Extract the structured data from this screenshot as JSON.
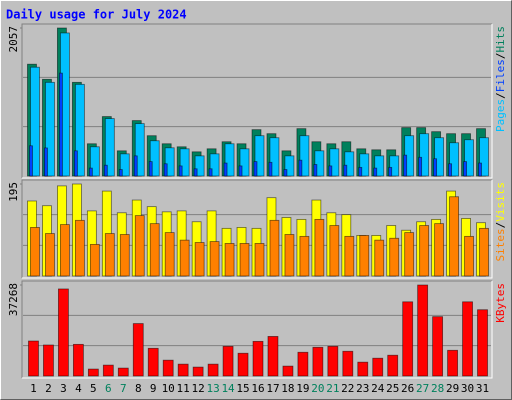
{
  "chart_data": [
    {
      "type": "bar",
      "title": "Daily usage for July 2024",
      "title_color": "#0000ff",
      "ylim": [
        0,
        2057
      ],
      "yticks": [
        2057
      ],
      "label_separator": "/",
      "series": [
        {
          "name": "Hits",
          "color": "#00805c",
          "values": [
            1554,
            1344,
            2057,
            1302,
            448,
            826,
            350,
            770,
            560,
            448,
            406,
            336,
            378,
            476,
            448,
            644,
            588,
            350,
            658,
            476,
            448,
            476,
            378,
            364,
            364,
            672,
            672,
            616,
            588,
            588,
            658
          ]
        },
        {
          "name": "Files",
          "color": "#0040ff",
          "values": [
            420,
            390,
            1430,
            350,
            110,
            150,
            90,
            280,
            200,
            170,
            140,
            100,
            100,
            180,
            140,
            200,
            190,
            90,
            220,
            160,
            140,
            150,
            120,
            110,
            120,
            290,
            260,
            240,
            170,
            200,
            180
          ]
        },
        {
          "name": "Pages",
          "color": "#00c0ff",
          "values": [
            1512,
            1302,
            1988,
            1274,
            406,
            798,
            308,
            728,
            490,
            392,
            378,
            280,
            308,
            448,
            378,
            560,
            532,
            280,
            560,
            350,
            378,
            336,
            308,
            280,
            280,
            560,
            588,
            532,
            462,
            504,
            532
          ]
        }
      ]
    },
    {
      "type": "bar",
      "ylim": [
        0,
        195
      ],
      "yticks": [
        195
      ],
      "label_separator": "/",
      "series": [
        {
          "name": "Visits",
          "color": "#ffff00",
          "values": [
            159,
            149,
            191,
            195,
            138,
            180,
            134,
            161,
            147,
            136,
            138,
            115,
            138,
            101,
            103,
            101,
            166,
            124,
            120,
            161,
            134,
            130,
            86,
            86,
            107,
            97,
            115,
            120,
            180,
            122,
            113
          ]
        },
        {
          "name": "Sites",
          "color": "#ff8000",
          "values": [
            103,
            90,
            109,
            118,
            67,
            90,
            88,
            128,
            111,
            92,
            76,
            71,
            73,
            69,
            69,
            69,
            118,
            88,
            84,
            120,
            107,
            84,
            86,
            76,
            80,
            92,
            107,
            111,
            168,
            84,
            101
          ]
        }
      ]
    },
    {
      "type": "bar",
      "ylim": [
        0,
        37268
      ],
      "yticks": [
        37268
      ],
      "categories": [
        1,
        2,
        3,
        4,
        5,
        6,
        7,
        8,
        9,
        10,
        11,
        12,
        13,
        14,
        15,
        16,
        17,
        18,
        19,
        20,
        21,
        22,
        23,
        24,
        25,
        26,
        27,
        28,
        29,
        30,
        31
      ],
      "category_colors": [
        "#000",
        "#000",
        "#000",
        "#000",
        "#000",
        "#00805c",
        "#00805c",
        "#000",
        "#000",
        "#000",
        "#000",
        "#000",
        "#00805c",
        "#00805c",
        "#000",
        "#000",
        "#000",
        "#000",
        "#000",
        "#00805c",
        "#00805c",
        "#000",
        "#000",
        "#000",
        "#000",
        "#000",
        "#00805c",
        "#00805c",
        "#000",
        "#000",
        "#000"
      ],
      "series": [
        {
          "name": "KBytes",
          "color": "#ff0000",
          "values": [
            14330,
            12700,
            35650,
            12960,
            2840,
            4460,
            3240,
            21470,
            11340,
            6480,
            4860,
            3650,
            4860,
            12150,
            9320,
            14180,
            16200,
            4050,
            9720,
            11750,
            12150,
            10130,
            5670,
            7290,
            8510,
            30380,
            37268,
            24300,
            10530,
            30380,
            27140
          ]
        }
      ]
    }
  ]
}
